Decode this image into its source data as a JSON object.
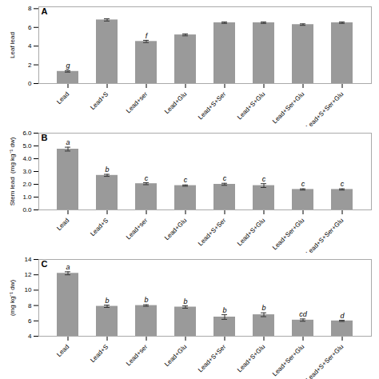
{
  "chart_data": [
    {
      "type": "bar",
      "title": "A",
      "categories": [
        "Lead",
        "Lead+S",
        "Lead+ser",
        "Lead+Glu",
        "Lead+S+Ser",
        "Lead+S+Glu",
        "Lead+Ser+Glu",
        "Lead+S+Ser+Glu"
      ],
      "values": [
        1.3,
        6.8,
        4.5,
        5.2,
        6.5,
        6.5,
        6.3,
        6.5
      ],
      "errors": [
        0.08,
        0.12,
        0.12,
        0.1,
        0.08,
        0.08,
        0.08,
        0.08
      ],
      "letters": [
        "g",
        null,
        "f",
        null,
        null,
        null,
        null,
        null
      ],
      "ylabel": "Leaf lead",
      "ylim": [
        0,
        8.2
      ],
      "yticks": [
        0,
        2,
        4,
        6,
        8
      ],
      "color": "#9a9a9a"
    },
    {
      "type": "bar",
      "title": "B",
      "categories": [
        "Lead",
        "Lead+S",
        "Lead+ser",
        "Lead+Glu",
        "Lead+S+Ser",
        "Lead+S+Glu",
        "Lead+Ser+Glu",
        "Lead+S+Ser+Glu"
      ],
      "values": [
        4.75,
        2.7,
        2.05,
        1.9,
        2.0,
        1.9,
        1.6,
        1.6
      ],
      "errors": [
        0.15,
        0.08,
        0.08,
        0.05,
        0.08,
        0.15,
        0.05,
        0.05
      ],
      "letters": [
        "a",
        "b",
        "c",
        "c",
        "c",
        "c",
        "c",
        "c"
      ],
      "ylabel": "Stem lead  (mg kg⁻¹ dw)",
      "ylim": [
        0,
        6
      ],
      "yticks": [
        0,
        1,
        2,
        3,
        4,
        5,
        6
      ],
      "color": "#9a9a9a"
    },
    {
      "type": "bar",
      "title": "C",
      "categories": [
        "Lead",
        "Lead+S",
        "Lead+ser",
        "Lead+Glu",
        "Lead+S+Ser",
        "Lead+S+Glu",
        "Lead+Ser+Glu",
        "Lead+S+Ser+Glu"
      ],
      "values": [
        12.2,
        7.9,
        8.0,
        7.8,
        6.5,
        6.8,
        6.1,
        6.0
      ],
      "errors": [
        0.2,
        0.15,
        0.1,
        0.15,
        0.3,
        0.25,
        0.15,
        0.08
      ],
      "letters": [
        "a",
        "b",
        "b",
        "b",
        "b",
        "b",
        "cd",
        "d"
      ],
      "ylabel": "(mg kg⁻¹ dw)",
      "ylim": [
        4,
        14
      ],
      "yticks": [
        4,
        6,
        8,
        10,
        12,
        14
      ],
      "color": "#9a9a9a"
    }
  ]
}
